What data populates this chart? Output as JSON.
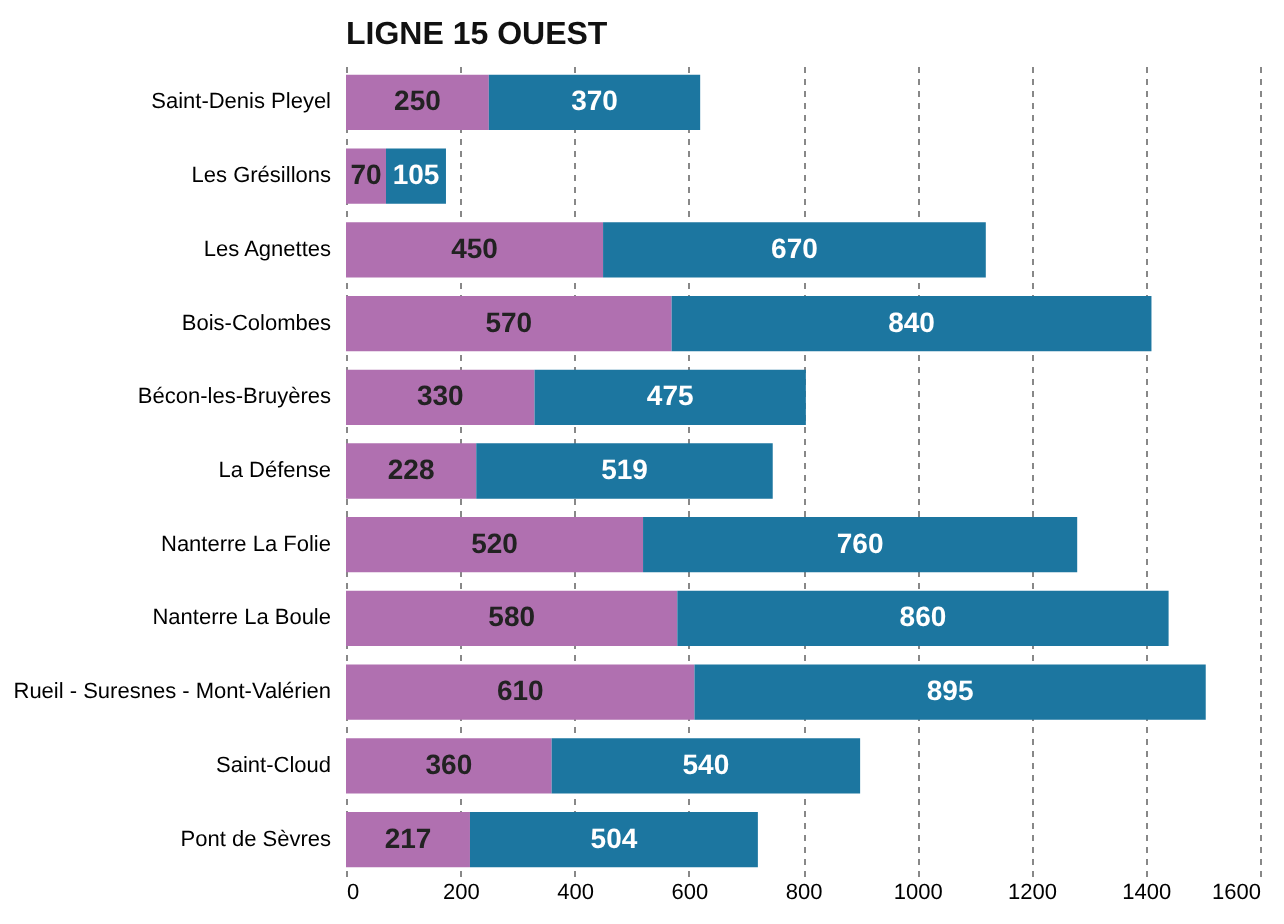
{
  "chart_data": {
    "type": "bar",
    "title": "LIGNE 15 OUEST",
    "orientation": "horizontal",
    "stacked": true,
    "categories": [
      "Saint-Denis Pleyel",
      "Les Grésillons",
      "Les Agnettes",
      "Bois-Colombes",
      "Bécon-les-Bruyères",
      "La Défense",
      "Nanterre La Folie",
      "Nanterre La Boule",
      "Rueil - Suresnes - Mont-Valérien",
      "Saint-Cloud",
      "Pont de Sèvres"
    ],
    "series": [
      {
        "color": "#b070b0",
        "values": [
          250,
          70,
          450,
          570,
          330,
          228,
          520,
          580,
          610,
          360,
          217
        ]
      },
      {
        "color": "#1c76a0",
        "values": [
          370,
          105,
          670,
          840,
          475,
          519,
          760,
          860,
          895,
          540,
          504
        ]
      }
    ],
    "xlim": [
      0,
      1600
    ],
    "xticks": [
      0,
      200,
      400,
      600,
      800,
      1000,
      1200,
      1400,
      1600
    ],
    "grid": "x",
    "data_labels": true
  }
}
